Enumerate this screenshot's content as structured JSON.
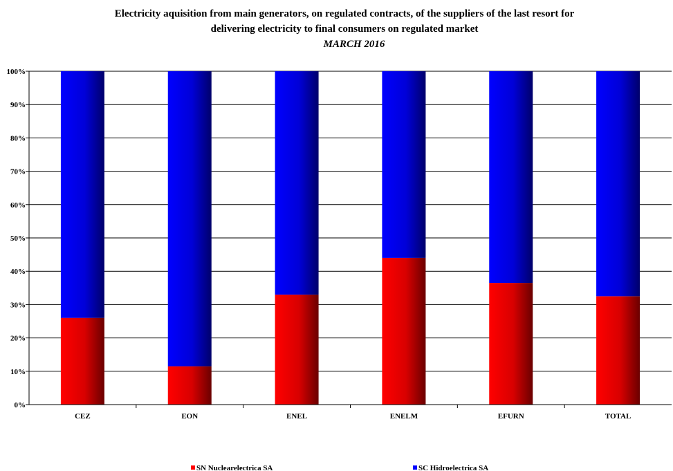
{
  "chart_data": {
    "type": "bar",
    "stacked": true,
    "title_lines": [
      "Electricity aquisition  from main generators, on regulated contracts, of the suppliers  of the last resort for",
      "delivering  electricity to final consumers on regulated market"
    ],
    "subtitle": "MARCH 2016",
    "categories": [
      "CEZ",
      "EON",
      "ENEL",
      "ENELM",
      "EFURN",
      "TOTAL"
    ],
    "series": [
      {
        "name": "SN Nuclearelectrica SA",
        "color": "#ff0000",
        "values": [
          26,
          11.5,
          33,
          44,
          36.5,
          32.5
        ]
      },
      {
        "name": "SC Hidroelectrica SA",
        "color": "#0000ff",
        "values": [
          74,
          88.5,
          67,
          56,
          63.5,
          67.5
        ]
      }
    ],
    "ylim": [
      0,
      100
    ],
    "yticks": [
      "0%",
      "10%",
      "20%",
      "30%",
      "40%",
      "50%",
      "60%",
      "70%",
      "80%",
      "90%",
      "100%"
    ],
    "grid": true,
    "legend_position": "bottom"
  }
}
